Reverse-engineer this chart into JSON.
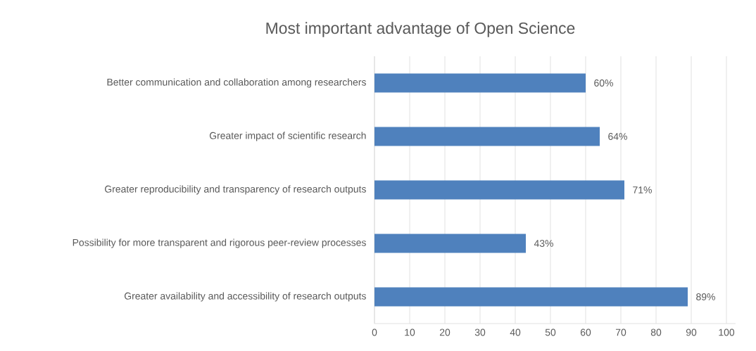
{
  "chart_data": {
    "type": "bar",
    "orientation": "horizontal",
    "title": "Most important advantage of Open Science",
    "categories": [
      "Better communication and collaboration among researchers",
      "Greater impact of scientific research",
      "Greater reproducibility and transparency of research outputs",
      "Possibility for more transparent and rigorous peer-review processes",
      "Greater availability and accessibility of research outputs"
    ],
    "values": [
      60,
      64,
      71,
      43,
      89
    ],
    "value_labels": [
      "60%",
      "64%",
      "71%",
      "43%",
      "89%"
    ],
    "color": "#4f81bd",
    "xlim": [
      0,
      102.6
    ],
    "xticks": [
      0,
      10,
      20,
      30,
      40,
      50,
      60,
      70,
      80,
      90,
      100
    ],
    "grid": "x"
  }
}
